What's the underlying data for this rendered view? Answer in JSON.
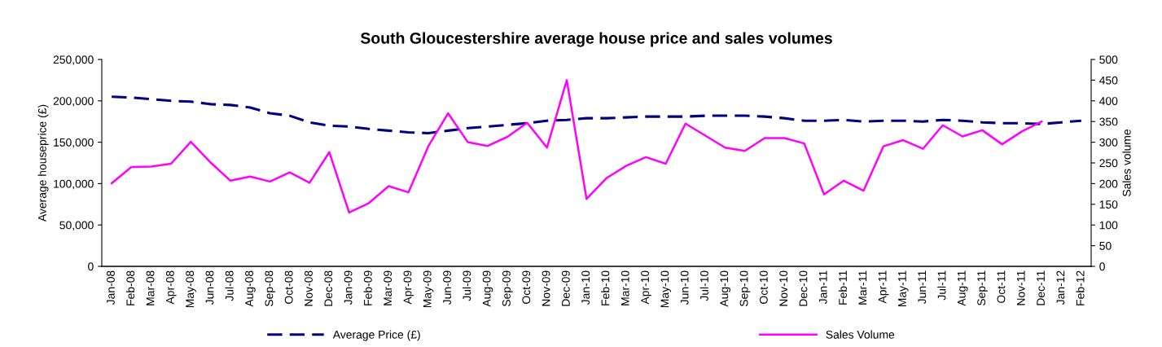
{
  "chart_data": {
    "type": "line",
    "title": "South Gloucestershire average house price and sales volumes",
    "ylabel": "Average houseprice (£)",
    "y2label": "Sales volume",
    "categories": [
      "Jan-08",
      "Feb-08",
      "Mar-08",
      "Apr-08",
      "May-08",
      "Jun-08",
      "Jul-08",
      "Aug-08",
      "Sep-08",
      "Oct-08",
      "Nov-08",
      "Dec-08",
      "Jan-09",
      "Feb-09",
      "Mar-09",
      "Apr-09",
      "May-09",
      "Jun-09",
      "Jul-09",
      "Aug-09",
      "Sep-09",
      "Oct-09",
      "Nov-09",
      "Dec-09",
      "Jan-10",
      "Feb-10",
      "Mar-10",
      "Apr-10",
      "May-10",
      "Jun-10",
      "Jul-10",
      "Aug-10",
      "Sep-10",
      "Oct-10",
      "Nov-10",
      "Dec-10",
      "Jan-11",
      "Feb-11",
      "Mar-11",
      "Apr-11",
      "May-11",
      "Jun-11",
      "Jul-11",
      "Aug-11",
      "Sep-11",
      "Oct-11",
      "Nov-11",
      "Dec-11",
      "Jan-12",
      "Feb-12"
    ],
    "series": [
      {
        "name": "Average Price (£)",
        "color": "#000080",
        "line_style": "dashed",
        "values": [
          205000,
          204000,
          202000,
          200000,
          199000,
          196000,
          195000,
          192000,
          185000,
          182000,
          174000,
          170000,
          169000,
          166000,
          164000,
          162000,
          161000,
          164000,
          167000,
          169000,
          171000,
          173000,
          176000,
          177000,
          179000,
          179000,
          180000,
          181000,
          181000,
          181000,
          182000,
          182000,
          182000,
          181000,
          179000,
          176000,
          176000,
          177000,
          175000,
          176000,
          176000,
          175000,
          177000,
          176000,
          174000,
          173000,
          173000,
          172000,
          174000,
          176000
        ]
      },
      {
        "name": "Sales Volume",
        "color": "#ff00ff",
        "line_style": "solid",
        "axis": "y2",
        "values": [
          201,
          240,
          241,
          248,
          301,
          251,
          207,
          217,
          205,
          227,
          202,
          276,
          130,
          153,
          194,
          179,
          290,
          370,
          300,
          291,
          313,
          347,
          287,
          450,
          163,
          213,
          243,
          264,
          248,
          345,
          316,
          287,
          279,
          310,
          310,
          297,
          174,
          207,
          183,
          290,
          305,
          284,
          341,
          314,
          329,
          295,
          326,
          350,
          null,
          null
        ]
      }
    ],
    "ylim": [
      0,
      250000
    ],
    "yticks": [
      {
        "value": 0,
        "label": "0"
      },
      {
        "value": 50000,
        "label": "50,000"
      },
      {
        "value": 100000,
        "label": "100,000"
      },
      {
        "value": 150000,
        "label": "150,000"
      },
      {
        "value": 200000,
        "label": "200,000"
      },
      {
        "value": 250000,
        "label": "250,000"
      }
    ],
    "y2lim": [
      0,
      500
    ],
    "y2ticks": [
      0,
      50,
      100,
      150,
      200,
      250,
      300,
      350,
      400,
      450,
      500
    ],
    "grid": false,
    "legend": "bottom",
    "marker": "none"
  }
}
